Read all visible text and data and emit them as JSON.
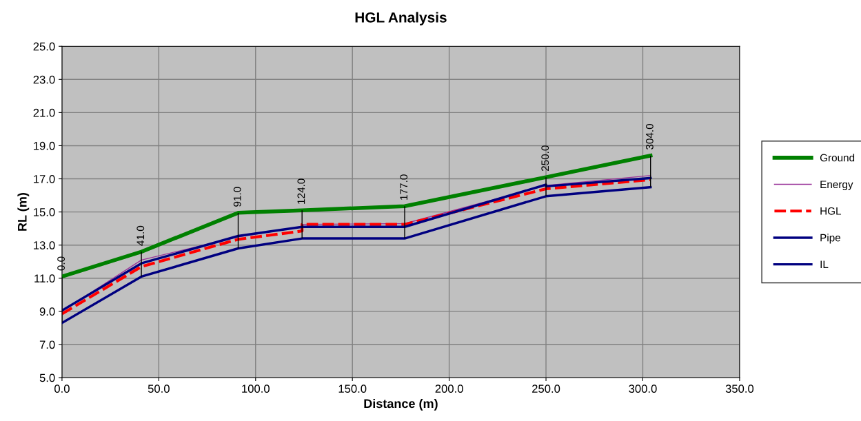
{
  "chart_data": {
    "type": "line",
    "title": "HGL Analysis",
    "xlabel": "Distance (m)",
    "ylabel": "RL (m)",
    "xlim": [
      0,
      350
    ],
    "xticks": [
      {
        "value": 0,
        "label": "0.0"
      },
      {
        "value": 50,
        "label": "50.0"
      },
      {
        "value": 100,
        "label": "100.0"
      },
      {
        "value": 150,
        "label": "150.0"
      },
      {
        "value": 200,
        "label": "200.0"
      },
      {
        "value": 250,
        "label": "250.0"
      },
      {
        "value": 300,
        "label": "300.0"
      },
      {
        "value": 350,
        "label": "350.0"
      }
    ],
    "ylim": [
      5,
      25
    ],
    "yticks": [
      {
        "value": 5,
        "label": "5.0"
      },
      {
        "value": 7,
        "label": "7.0"
      },
      {
        "value": 9,
        "label": "9.0"
      },
      {
        "value": 11,
        "label": "11.0"
      },
      {
        "value": 13,
        "label": "13.0"
      },
      {
        "value": 15,
        "label": "15.0"
      },
      {
        "value": 17,
        "label": "17.0"
      },
      {
        "value": 19,
        "label": "19.0"
      },
      {
        "value": 21,
        "label": "21.0"
      },
      {
        "value": 23,
        "label": "23.0"
      },
      {
        "value": 25,
        "label": "25.0"
      }
    ],
    "grid": true,
    "legend": "right",
    "marker": "none",
    "series": [
      {
        "name": "Ground",
        "color": "#008000",
        "x": [
          0,
          41,
          91,
          124,
          177,
          250,
          304
        ],
        "values": [
          11.1,
          12.6,
          14.95,
          15.1,
          15.35,
          17.1,
          18.4
        ],
        "errors": [
          [
            8.3,
            11.1
          ],
          [
            11.1,
            12.6
          ],
          [
            12.8,
            14.95
          ],
          [
            13.4,
            15.1
          ],
          [
            13.4,
            15.35
          ],
          [
            15.95,
            17.1
          ],
          [
            16.5,
            18.4
          ]
        ]
      },
      {
        "name": "Energy",
        "color": "#993399",
        "x": [
          0,
          41,
          91,
          124,
          124,
          177,
          250,
          304
        ],
        "values": [
          9.0,
          12.1,
          13.5,
          14.1,
          14.25,
          14.3,
          16.6,
          17.2
        ]
      },
      {
        "name": "HGL",
        "color": "#ff0000",
        "line_style": "dashed",
        "x": [
          0,
          41,
          91,
          124,
          124,
          177,
          250,
          304
        ],
        "values": [
          8.85,
          11.7,
          13.35,
          13.85,
          14.25,
          14.25,
          16.4,
          16.95
        ]
      },
      {
        "name": "Pipe",
        "color": "#000080",
        "x": [
          0,
          41,
          91,
          124,
          177,
          250,
          250,
          304
        ],
        "values": [
          9.05,
          11.9,
          13.55,
          14.1,
          14.1,
          16.65,
          16.55,
          17.05
        ]
      },
      {
        "name": "IL",
        "color": "#000080",
        "x": [
          0,
          41,
          91,
          124,
          177,
          250,
          304
        ],
        "values": [
          8.3,
          11.1,
          12.8,
          13.4,
          13.4,
          15.95,
          16.5
        ]
      }
    ],
    "annotations": [
      {
        "text": "0.0",
        "x": 0,
        "y": 11.1
      },
      {
        "text": "41.0",
        "x": 41,
        "y": 12.6
      },
      {
        "text": "91.0",
        "x": 91,
        "y": 14.95
      },
      {
        "text": "124.0",
        "x": 124,
        "y": 15.1
      },
      {
        "text": "177.0",
        "x": 177,
        "y": 15.35
      },
      {
        "text": "250.0",
        "x": 250,
        "y": 17.1
      },
      {
        "text": "304.0",
        "x": 304,
        "y": 18.4
      }
    ]
  }
}
